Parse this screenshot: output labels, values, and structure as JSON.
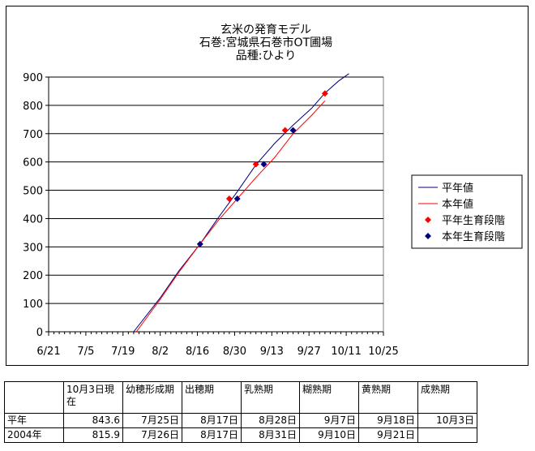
{
  "chart_data": {
    "type": "line",
    "title": [
      "玄米の発育モデル",
      "石巻:宮城県石巻市OT圃場",
      "品種:ひより"
    ],
    "xlabel": "",
    "ylabel": "",
    "x_ticks": [
      "6/21",
      "7/5",
      "7/19",
      "8/2",
      "8/16",
      "8/30",
      "9/13",
      "9/27",
      "10/11",
      "10/25"
    ],
    "x_range": [
      "6/21",
      "10/25"
    ],
    "y_ticks": [
      "0",
      "100",
      "200",
      "300",
      "400",
      "500",
      "600",
      "700",
      "800",
      "900"
    ],
    "ylim": [
      0,
      900
    ],
    "grid": "horizontal",
    "legend_position": "right",
    "series": [
      {
        "name": "平年値",
        "kind": "line",
        "color": "#000080",
        "points": [
          [
            "7/23",
            0
          ],
          [
            "8/2",
            120
          ],
          [
            "8/9",
            215
          ],
          [
            "8/17",
            310
          ],
          [
            "8/24",
            405
          ],
          [
            "8/31",
            495
          ],
          [
            "9/7",
            590
          ],
          [
            "9/14",
            665
          ],
          [
            "9/21",
            730
          ],
          [
            "9/28",
            790
          ],
          [
            "10/3",
            843.6
          ],
          [
            "10/8",
            885
          ],
          [
            "10/12",
            912
          ]
        ]
      },
      {
        "name": "本年値",
        "kind": "line",
        "color": "#ff0000",
        "points": [
          [
            "7/24",
            0
          ],
          [
            "8/2",
            115
          ],
          [
            "8/9",
            210
          ],
          [
            "8/17",
            310
          ],
          [
            "8/24",
            395
          ],
          [
            "8/31",
            470
          ],
          [
            "9/7",
            545
          ],
          [
            "9/14",
            615
          ],
          [
            "9/21",
            700
          ],
          [
            "9/28",
            765
          ],
          [
            "10/3",
            815.9
          ]
        ]
      },
      {
        "name": "平年生育段階",
        "kind": "marker",
        "color": "#ff0000",
        "points": [
          [
            "8/28",
            470
          ],
          [
            "9/7",
            592
          ],
          [
            "9/18",
            712
          ],
          [
            "10/3",
            842
          ]
        ]
      },
      {
        "name": "本年生育段階",
        "kind": "marker",
        "color": "#000080",
        "points": [
          [
            "8/17",
            310
          ],
          [
            "8/31",
            470
          ],
          [
            "9/10",
            592
          ],
          [
            "9/21",
            712
          ]
        ]
      }
    ]
  },
  "table": {
    "header": [
      "",
      "10月3日現在",
      "幼穂形成期",
      "出穂期",
      "乳熟期",
      "糊熟期",
      "黄熟期",
      "成熟期"
    ],
    "rows": [
      {
        "label": "平年",
        "cells": [
          "843.6",
          "7月25日",
          "8月17日",
          "8月28日",
          "9月7日",
          "9月18日",
          "10月3日"
        ]
      },
      {
        "label": "2004年",
        "cells": [
          "815.9",
          "7月26日",
          "8月17日",
          "8月31日",
          "9月10日",
          "9月21日",
          ""
        ]
      }
    ]
  }
}
